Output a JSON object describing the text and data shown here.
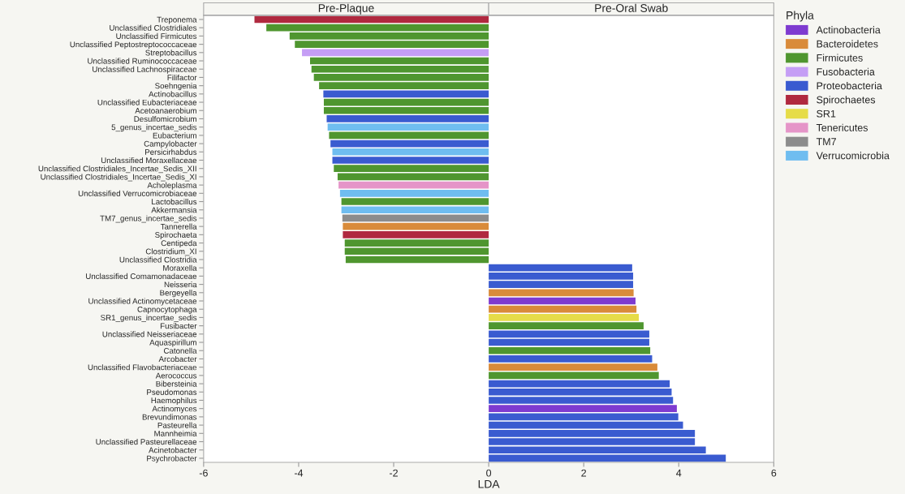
{
  "chart_data": {
    "type": "bar",
    "orientation": "horizontal",
    "categories": [
      "Treponema",
      "Unclassified Clostridiales",
      "Unclassified Firmicutes",
      "Unclassified Peptostreptococcaceae",
      "Streptobacillus",
      "Unclassified Ruminococcaceae",
      "Unclassified Lachnospiraceae",
      "Filifactor",
      "Soehngenia",
      "Actinobacillus",
      "Unclassified Eubacteriaceae",
      "Acetoanaerobium",
      "Desulfomicrobium",
      "5_genus_incertae_sedis",
      "Eubacterium",
      "Campylobacter",
      "Persicirhabdus",
      "Unclassified Moraxellaceae",
      "Unclassified Clostridiales_Incertae_Sedis_XII",
      "Unclassified Clostridiales_Incertae_Sedis_XI",
      "Acholeplasma",
      "Unclassified Verrucomicrobiaceae",
      "Lactobacillus",
      "Akkermansia",
      "TM7_genus_incertae_sedis",
      "Tannerella",
      "Spirochaeta",
      "Centipeda",
      "Clostridium_XI",
      "Unclassified Clostridia",
      "Moraxella",
      "Unclassified Comamonadaceae",
      "Neisseria",
      "Bergeyella",
      "Unclassified Actinomycetaceae",
      "Capnocytophaga",
      "SR1_genus_incertae_sedis",
      "Fusibacter",
      "Unclassified Neisseriaceae",
      "Aquaspirillum",
      "Catonella",
      "Arcobacter",
      "Unclassified Flavobacteriaceae",
      "Aerococcus",
      "Bibersteinia",
      "Pseudomonas",
      "Haemophilus",
      "Actinomyces",
      "Brevundimonas",
      "Pasteurella",
      "Mannheimia",
      "Unclassified Pasteurellaceae",
      "Acinetobacter",
      "Psychrobacter"
    ],
    "series": [
      {
        "name": "Actinobacteria",
        "color": "#7e3bd0",
        "values": [
          null,
          null,
          null,
          null,
          null,
          null,
          null,
          null,
          null,
          null,
          null,
          null,
          null,
          null,
          null,
          null,
          null,
          null,
          null,
          null,
          null,
          null,
          null,
          null,
          null,
          null,
          null,
          null,
          null,
          null,
          null,
          null,
          null,
          null,
          3.09,
          null,
          null,
          null,
          null,
          null,
          null,
          null,
          null,
          null,
          null,
          null,
          null,
          3.96,
          null,
          null,
          null,
          null,
          null,
          null
        ]
      },
      {
        "name": "Bacteroidetes",
        "color": "#d98b3a",
        "values": [
          null,
          null,
          null,
          null,
          null,
          null,
          null,
          null,
          null,
          null,
          null,
          null,
          null,
          null,
          null,
          null,
          null,
          null,
          null,
          null,
          null,
          null,
          null,
          null,
          null,
          -3.07,
          null,
          null,
          null,
          null,
          null,
          null,
          null,
          3.05,
          null,
          3.11,
          null,
          null,
          null,
          null,
          null,
          null,
          3.55,
          null,
          null,
          null,
          null,
          null,
          null,
          null,
          null,
          null,
          null,
          null
        ]
      },
      {
        "name": "Firmicutes",
        "color": "#4f962f",
        "values": [
          null,
          -4.68,
          -4.19,
          -4.08,
          null,
          -3.76,
          -3.73,
          -3.68,
          -3.57,
          null,
          -3.47,
          -3.47,
          null,
          null,
          -3.36,
          null,
          null,
          null,
          -3.26,
          -3.18,
          null,
          null,
          -3.1,
          null,
          null,
          null,
          null,
          -3.03,
          -3.03,
          -3.01,
          null,
          null,
          null,
          null,
          null,
          null,
          null,
          3.26,
          null,
          null,
          3.4,
          null,
          null,
          3.58,
          null,
          null,
          null,
          null,
          null,
          null,
          null,
          null,
          null,
          null
        ]
      },
      {
        "name": "Fusobacteria",
        "color": "#c59ef5",
        "values": [
          null,
          null,
          null,
          null,
          -3.93,
          null,
          null,
          null,
          null,
          null,
          null,
          null,
          null,
          null,
          null,
          null,
          null,
          null,
          null,
          null,
          null,
          null,
          null,
          null,
          null,
          null,
          null,
          null,
          null,
          null,
          null,
          null,
          null,
          null,
          null,
          null,
          null,
          null,
          null,
          null,
          null,
          null,
          null,
          null,
          null,
          null,
          null,
          null,
          null,
          null,
          null,
          null,
          null,
          null
        ]
      },
      {
        "name": "Proteobacteria",
        "color": "#3a5bd0",
        "values": [
          null,
          null,
          null,
          null,
          null,
          null,
          null,
          null,
          null,
          -3.48,
          null,
          null,
          -3.41,
          null,
          null,
          -3.33,
          null,
          -3.29,
          null,
          null,
          null,
          null,
          null,
          null,
          null,
          null,
          null,
          null,
          null,
          null,
          3.02,
          3.04,
          3.04,
          null,
          null,
          null,
          null,
          null,
          3.38,
          3.38,
          null,
          3.44,
          null,
          null,
          3.81,
          3.85,
          3.88,
          null,
          3.99,
          4.09,
          4.34,
          4.34,
          4.57,
          4.99
        ]
      },
      {
        "name": "Spirochaetes",
        "color": "#b0293f",
        "values": [
          -4.93,
          null,
          null,
          null,
          null,
          null,
          null,
          null,
          null,
          null,
          null,
          null,
          null,
          null,
          null,
          null,
          null,
          null,
          null,
          null,
          null,
          null,
          null,
          null,
          null,
          null,
          -3.07,
          null,
          null,
          null,
          null,
          null,
          null,
          null,
          null,
          null,
          null,
          null,
          null,
          null,
          null,
          null,
          null,
          null,
          null,
          null,
          null,
          null,
          null,
          null,
          null,
          null,
          null,
          null
        ]
      },
      {
        "name": "SR1",
        "color": "#e6dc48",
        "values": [
          null,
          null,
          null,
          null,
          null,
          null,
          null,
          null,
          null,
          null,
          null,
          null,
          null,
          null,
          null,
          null,
          null,
          null,
          null,
          null,
          null,
          null,
          null,
          null,
          null,
          null,
          null,
          null,
          null,
          null,
          null,
          null,
          null,
          null,
          null,
          null,
          3.16,
          null,
          null,
          null,
          null,
          null,
          null,
          null,
          null,
          null,
          null,
          null,
          null,
          null,
          null,
          null,
          null,
          null
        ]
      },
      {
        "name": "Tenericutes",
        "color": "#e595c8",
        "values": [
          null,
          null,
          null,
          null,
          null,
          null,
          null,
          null,
          null,
          null,
          null,
          null,
          null,
          null,
          null,
          null,
          null,
          null,
          null,
          null,
          -3.16,
          null,
          null,
          null,
          null,
          null,
          null,
          null,
          null,
          null,
          null,
          null,
          null,
          null,
          null,
          null,
          null,
          null,
          null,
          null,
          null,
          null,
          null,
          null,
          null,
          null,
          null,
          null,
          null,
          null,
          null,
          null,
          null,
          null
        ]
      },
      {
        "name": "TM7",
        "color": "#8c8c8c",
        "values": [
          null,
          null,
          null,
          null,
          null,
          null,
          null,
          null,
          null,
          null,
          null,
          null,
          null,
          null,
          null,
          null,
          null,
          null,
          null,
          null,
          null,
          null,
          null,
          null,
          -3.08,
          null,
          null,
          null,
          null,
          null,
          null,
          null,
          null,
          null,
          null,
          null,
          null,
          null,
          null,
          null,
          null,
          null,
          null,
          null,
          null,
          null,
          null,
          null,
          null,
          null,
          null,
          null,
          null,
          null
        ]
      },
      {
        "name": "Verrucomicrobia",
        "color": "#6fbdf0",
        "values": [
          null,
          null,
          null,
          null,
          null,
          null,
          null,
          null,
          null,
          null,
          null,
          null,
          null,
          -3.39,
          null,
          null,
          -3.29,
          null,
          null,
          null,
          null,
          -3.13,
          null,
          -3.1,
          null,
          null,
          null,
          null,
          null,
          null,
          null,
          null,
          null,
          null,
          null,
          null,
          null,
          null,
          null,
          null,
          null,
          null,
          null,
          null,
          null,
          null,
          null,
          null,
          null,
          null,
          null,
          null,
          null,
          null
        ]
      }
    ],
    "xlabel": "LDA",
    "legend_title": "Phyla",
    "legend": "right",
    "xlim": [
      -6,
      6
    ],
    "xticks": [
      -6,
      -4,
      -2,
      0,
      2,
      4,
      6
    ],
    "grid": false,
    "annotations": [
      "Pre-Plaque",
      "Pre-Oral Swab"
    ]
  }
}
